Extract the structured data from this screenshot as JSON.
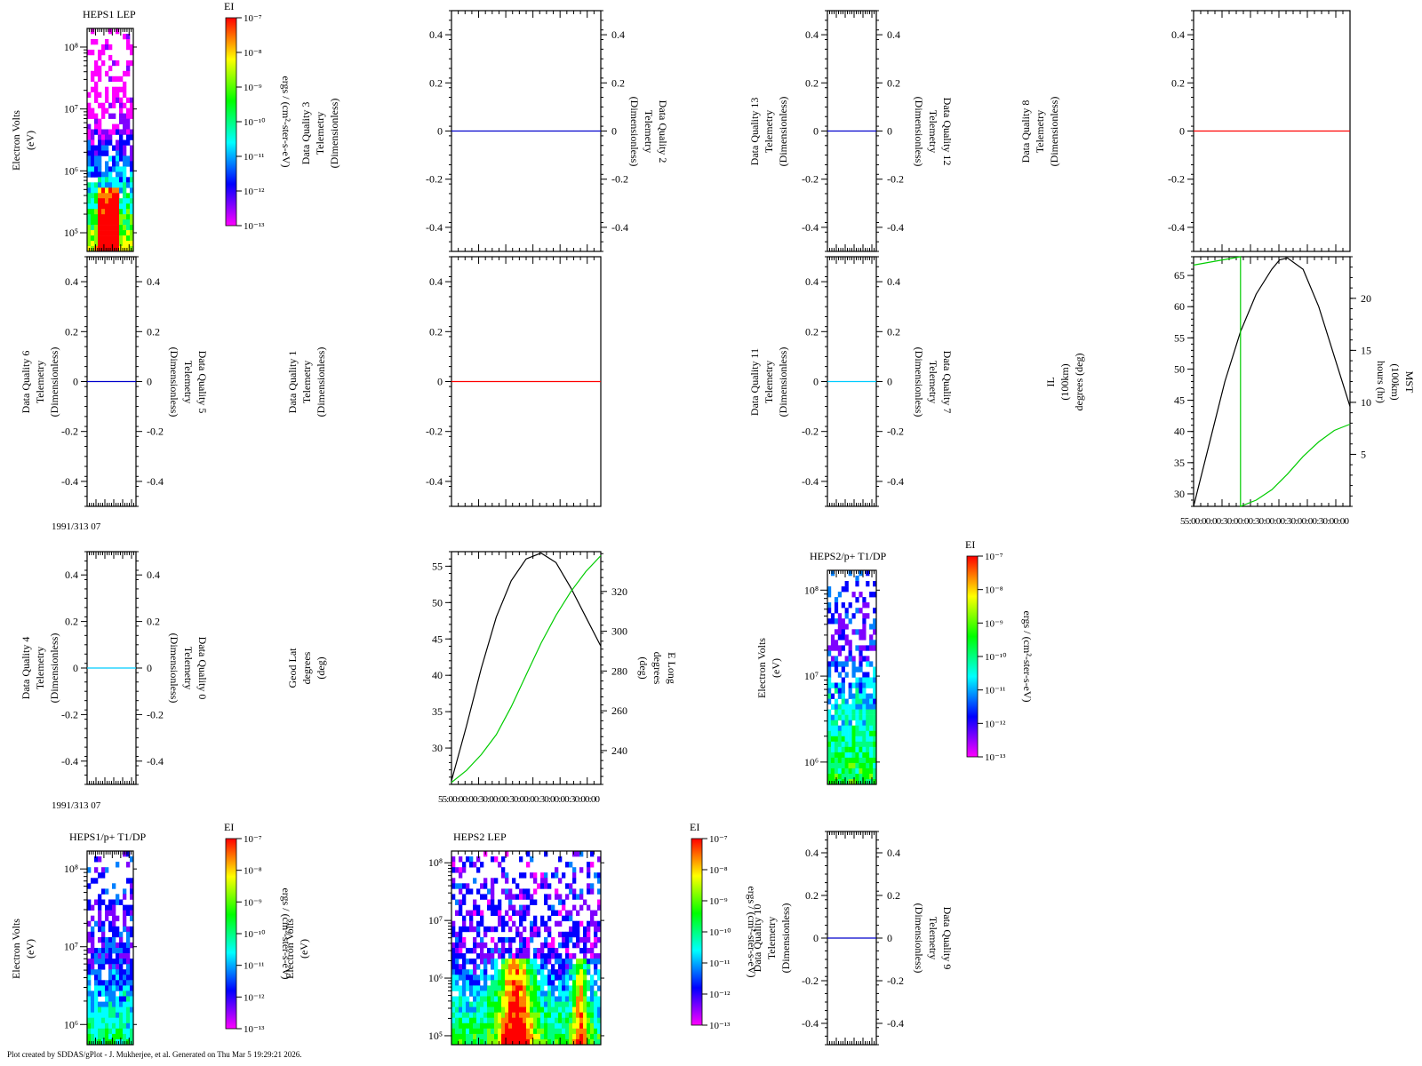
{
  "figure": {
    "footer": "Plot created by SDDAS/gPlot - J. Mukherjee, et al.  Generated on Thu Mar 5 19:29:21 2026.",
    "date_label": "1991/313 07",
    "time_ticks_label": "55:00:00:00:30:00:00:30:00:00:30:00:00:30:00:00",
    "colorbar": {
      "title": "EI",
      "unit_label": "ergs / (cm²-ster-s-eV)",
      "tick_labels": [
        "10⁻⁷",
        "10⁻⁸",
        "10⁻⁹",
        "10⁻¹⁰",
        "10⁻¹¹",
        "10⁻¹²",
        "10⁻¹³"
      ],
      "colors": [
        "#ff00ff",
        "#7f00ff",
        "#0000ff",
        "#0080ff",
        "#00ffff",
        "#00ff80",
        "#00ff00",
        "#80ff00",
        "#ffff00",
        "#ff8000",
        "#ff0000"
      ]
    },
    "series_colors": {
      "black": "#000000",
      "green": "#00cc00",
      "blue": "#0000cc",
      "red": "#ff0000",
      "cyan": "#00ccff"
    }
  },
  "chart_data": [
    {
      "id": "heps1-lep",
      "type": "heatmap",
      "title": "HEPS1 LEP",
      "ylabel": [
        "Electron Volts",
        "(eV)"
      ],
      "ylog": true,
      "ylim": [
        50000,
        200000000
      ],
      "ytick_labels": [
        "10⁸",
        "10⁷",
        "10⁶",
        "10⁵"
      ],
      "yticks": [
        100000000,
        10000000,
        1000000,
        100000
      ]
    },
    {
      "id": "dq3",
      "type": "line",
      "ylabel": [
        "Data Quality 3",
        "Telemetry",
        "(Dimensionless)"
      ]
    },
    {
      "id": "dq2",
      "type": "line",
      "ylim": [
        -0.5,
        0.5
      ],
      "ytick_labels": [
        "0.4",
        "0.2",
        "0",
        "-0.2",
        "-0.4"
      ],
      "yticks": [
        0.4,
        0.2,
        0,
        -0.2,
        -0.4
      ],
      "ylabel_right": [
        "Data Quality 2",
        "Telemetry",
        "(Dimensionless)"
      ],
      "series": [
        {
          "color": "blue",
          "y": [
            0,
            0
          ]
        }
      ]
    },
    {
      "id": "dq13-12",
      "type": "line",
      "ylim": [
        -0.5,
        0.5
      ],
      "ytick_labels": [
        "0.4",
        "0.2",
        "0",
        "-0.2",
        "-0.4"
      ],
      "yticks": [
        0.4,
        0.2,
        0,
        -0.2,
        -0.4
      ],
      "ylabel": [
        "Data Quality 13",
        "Telemetry",
        "(Dimensionless)"
      ],
      "ylabel_right": [
        "Data Quality 12",
        "Telemetry",
        "(Dimensionless)"
      ],
      "series": [
        {
          "color": "blue",
          "y": [
            0,
            0
          ]
        }
      ]
    },
    {
      "id": "dq8",
      "type": "line",
      "ylabel": [
        "Data Quality 8",
        "Telemetry",
        "(Dimensionless)"
      ]
    },
    {
      "id": "dq8-plot",
      "type": "line",
      "ylim": [
        -0.5,
        0.5
      ],
      "ytick_labels": [
        "0.4",
        "0.2",
        "0",
        "-0.2",
        "-0.4"
      ],
      "yticks": [
        0.4,
        0.2,
        0,
        -0.2,
        -0.4
      ],
      "series": [
        {
          "color": "red",
          "y": [
            0,
            0
          ]
        }
      ]
    },
    {
      "id": "dq6-5",
      "type": "line",
      "ylim": [
        -0.5,
        0.5
      ],
      "ytick_labels": [
        "0.4",
        "0.2",
        "0",
        "-0.2",
        "-0.4"
      ],
      "yticks": [
        0.4,
        0.2,
        0,
        -0.2,
        -0.4
      ],
      "ylabel": [
        "Data Quality 6",
        "Telemetry",
        "(Dimensionless)"
      ],
      "ylabel_right": [
        "Data Quality 5",
        "Telemetry",
        "(Dimensionless)"
      ],
      "series": [
        {
          "color": "blue",
          "y": [
            0,
            0
          ]
        }
      ]
    },
    {
      "id": "dq1",
      "type": "line",
      "ylim": [
        -0.5,
        0.5
      ],
      "ytick_labels": [
        "0.4",
        "0.2",
        "0",
        "-0.2",
        "-0.4"
      ],
      "yticks": [
        0.4,
        0.2,
        0,
        -0.2,
        -0.4
      ],
      "ylabel_far": [
        "Data Quality 1",
        "Telemetry",
        "(Dimensionless)"
      ],
      "series": [
        {
          "color": "red",
          "y": [
            0,
            0
          ]
        }
      ]
    },
    {
      "id": "dq11-7",
      "type": "line",
      "ylim": [
        -0.5,
        0.5
      ],
      "ytick_labels": [
        "0.4",
        "0.2",
        "0",
        "-0.2",
        "-0.4"
      ],
      "yticks": [
        0.4,
        0.2,
        0,
        -0.2,
        -0.4
      ],
      "ylabel": [
        "Data Quality 11",
        "Telemetry",
        "(Dimensionless)"
      ],
      "ylabel_right": [
        "Data Quality 7",
        "Telemetry",
        "(Dimensionless)"
      ],
      "series": [
        {
          "color": "cyan",
          "y": [
            0,
            0
          ]
        }
      ]
    },
    {
      "id": "il-mst",
      "type": "line",
      "ylim": [
        28,
        68
      ],
      "ytick_labels": [
        "65",
        "60",
        "55",
        "50",
        "45",
        "40",
        "35",
        "30"
      ],
      "yticks": [
        65,
        60,
        55,
        50,
        45,
        40,
        35,
        30
      ],
      "ylim_right": [
        0,
        24
      ],
      "ytick_labels_right": [
        "20",
        "15",
        "10",
        "5"
      ],
      "yticks_right": [
        20,
        15,
        10,
        5
      ],
      "ylabel": [
        "IL",
        "(100km)",
        "degrees (deg)"
      ],
      "ylabel_right": [
        "MST",
        "(100km)",
        "hours (hr)"
      ],
      "series": [
        {
          "name": "IL",
          "color": "black",
          "axis": "left",
          "x": [
            0,
            0.1,
            0.2,
            0.3,
            0.4,
            0.5,
            0.55,
            0.6,
            0.7,
            0.8,
            0.9,
            1.0
          ],
          "y": [
            28,
            38,
            48,
            56,
            62,
            66,
            67.5,
            67.8,
            66,
            60,
            52,
            44
          ]
        },
        {
          "name": "MST",
          "color": "green",
          "axis": "right",
          "x": [
            0,
            0.3,
            0.3,
            0.4,
            0.5,
            0.6,
            0.7,
            0.8,
            0.9,
            1.0
          ],
          "y": [
            23.2,
            24,
            0,
            0.6,
            1.6,
            3.1,
            4.8,
            6.2,
            7.3,
            7.9
          ]
        }
      ]
    },
    {
      "id": "dq4-0",
      "type": "line",
      "ylim": [
        -0.5,
        0.5
      ],
      "ytick_labels": [
        "0.4",
        "0.2",
        "0",
        "-0.2",
        "-0.4"
      ],
      "yticks": [
        0.4,
        0.2,
        0,
        -0.2,
        -0.4
      ],
      "ylabel": [
        "Data Quality 4",
        "Telemetry",
        "(Dimensionless)"
      ],
      "ylabel_right": [
        "Data Quality 0",
        "Telemetry",
        "(Dimensionless)"
      ],
      "series": [
        {
          "color": "cyan",
          "y": [
            0,
            0
          ]
        }
      ]
    },
    {
      "id": "geod-elong",
      "type": "line",
      "ylim": [
        25,
        57
      ],
      "ytick_labels": [
        "55",
        "50",
        "45",
        "40",
        "35",
        "30"
      ],
      "yticks": [
        55,
        50,
        45,
        40,
        35,
        30
      ],
      "ylim_right": [
        223,
        340
      ],
      "ytick_labels_right": [
        "320",
        "300",
        "280",
        "260",
        "240"
      ],
      "yticks_right": [
        320,
        300,
        280,
        260,
        240
      ],
      "ylabel_far": [
        "Geod Lat",
        "degrees",
        "(deg)"
      ],
      "ylabel_right": [
        "E Long",
        "degrees",
        "(deg)"
      ],
      "series": [
        {
          "name": "Geod Lat",
          "color": "black",
          "axis": "left",
          "x": [
            0,
            0.1,
            0.2,
            0.3,
            0.4,
            0.5,
            0.6,
            0.7,
            0.8,
            0.9,
            1.0
          ],
          "y": [
            25.5,
            33,
            41,
            48,
            53,
            56,
            56.8,
            55.5,
            52,
            48,
            44
          ]
        },
        {
          "name": "E Long",
          "color": "green",
          "axis": "right",
          "x": [
            0,
            0.1,
            0.2,
            0.3,
            0.4,
            0.5,
            0.6,
            0.7,
            0.8,
            0.9,
            1.0
          ],
          "y": [
            224,
            230,
            238,
            248,
            262,
            278,
            294,
            308,
            320,
            330,
            338
          ]
        }
      ]
    },
    {
      "id": "heps2-p-t1dp",
      "type": "heatmap",
      "title": "HEPS2/p+ T1/DP",
      "ylabel": [
        "Electron Volts",
        "(eV)"
      ],
      "ylog": true,
      "ylim": [
        550000,
        170000000
      ],
      "ytick_labels": [
        "10⁸",
        "10⁷",
        "10⁶"
      ],
      "yticks": [
        100000000,
        10000000,
        1000000
      ]
    },
    {
      "id": "heps1-p-t1dp",
      "type": "heatmap",
      "title": "HEPS1/p+ T1/DP",
      "ylabel": [
        "Electron Volts",
        "(eV)"
      ],
      "ylabel_right": [
        "Electron Volts",
        "(eV)"
      ],
      "ylog": true,
      "ylim": [
        550000,
        170000000
      ],
      "ytick_labels": [
        "10⁸",
        "10⁷",
        "10⁶"
      ],
      "yticks": [
        100000000,
        10000000,
        1000000
      ]
    },
    {
      "id": "heps2-lep",
      "type": "heatmap",
      "title": "HEPS2 LEP",
      "ylabel_right": [
        "Data Quality 10",
        "Telemetry",
        "(Dimensionless)"
      ],
      "ylog": true,
      "ylim": [
        70000,
        160000000
      ],
      "ytick_labels": [
        "10⁸",
        "10⁷",
        "10⁶",
        "10⁵"
      ],
      "yticks": [
        100000000,
        10000000,
        1000000,
        100000
      ]
    },
    {
      "id": "dq9",
      "type": "line",
      "ylim": [
        -0.5,
        0.5
      ],
      "ytick_labels": [
        "0.4",
        "0.2",
        "0",
        "-0.2",
        "-0.4"
      ],
      "yticks": [
        0.4,
        0.2,
        0,
        -0.2,
        -0.4
      ],
      "ylabel_right": [
        "Data Quality 9",
        "Telemetry",
        "(Dimensionless)"
      ],
      "series": [
        {
          "color": "blue",
          "y": [
            0,
            0
          ]
        }
      ]
    }
  ]
}
